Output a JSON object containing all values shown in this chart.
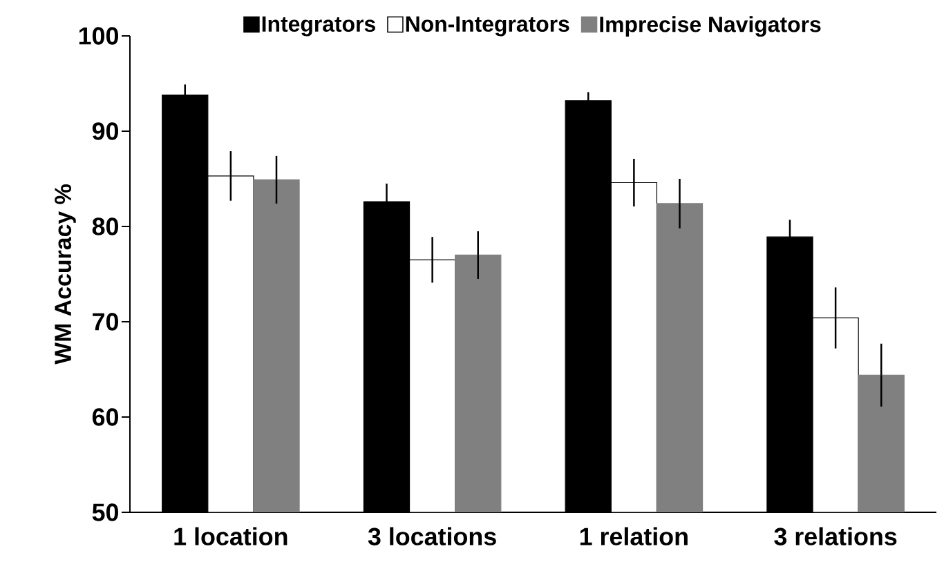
{
  "chart_data": {
    "type": "bar",
    "ylabel": "WM Accuracy %",
    "categories": [
      "1 location",
      "3 locations",
      "1 relation",
      "3 relations"
    ],
    "series": [
      {
        "name": "Integrators",
        "color": "#000000",
        "values": [
          93.8,
          82.6,
          93.2,
          78.9
        ],
        "errors": [
          1.1,
          1.9,
          0.9,
          1.8
        ]
      },
      {
        "name": "Non-Integrators",
        "color": "#ffffff",
        "values": [
          85.3,
          76.5,
          84.6,
          70.4
        ],
        "errors": [
          2.6,
          2.4,
          2.5,
          3.2
        ]
      },
      {
        "name": "Imprecise Navigators",
        "color": "#808080",
        "values": [
          84.9,
          77.0,
          82.4,
          64.4
        ],
        "errors": [
          2.5,
          2.5,
          2.6,
          3.3
        ]
      }
    ],
    "ylim": [
      50,
      100
    ],
    "yticks": [
      50,
      60,
      70,
      80,
      90,
      100
    ],
    "grid": false,
    "legend": "top"
  }
}
